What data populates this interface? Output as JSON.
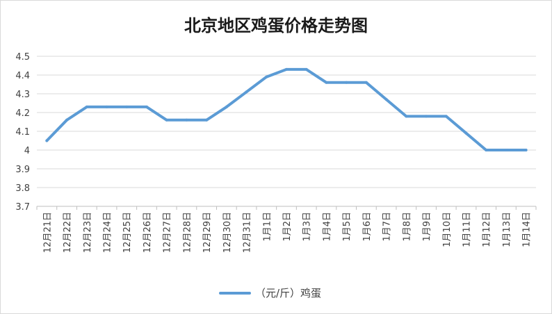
{
  "chart_data": {
    "type": "line",
    "title": "北京地区鸡蛋价格走势图",
    "xlabel": "",
    "ylabel": "",
    "categories": [
      "12月21日",
      "12月22日",
      "12月23日",
      "12月24日",
      "12月25日",
      "12月26日",
      "12月27日",
      "12月28日",
      "12月29日",
      "12月30日",
      "12月31日",
      "1月1日",
      "1月2日",
      "1月3日",
      "1月4日",
      "1月5日",
      "1月6日",
      "1月7日",
      "1月8日",
      "1月9日",
      "1月10日",
      "1月11日",
      "1月12日",
      "1月13日",
      "1月14日"
    ],
    "series": [
      {
        "name": "（元/斤）鸡蛋",
        "color": "#5b9bd5",
        "values": [
          4.05,
          4.16,
          4.23,
          4.23,
          4.23,
          4.23,
          4.16,
          4.16,
          4.16,
          4.23,
          4.31,
          4.39,
          4.43,
          4.43,
          4.36,
          4.36,
          4.36,
          4.27,
          4.18,
          4.18,
          4.18,
          4.09,
          4.0,
          4.0,
          4.0
        ]
      }
    ],
    "ylim": [
      3.7,
      4.5
    ],
    "yticks": [
      "3.7",
      "3.8",
      "3.9",
      "4",
      "4.1",
      "4.2",
      "4.3",
      "4.4",
      "4.5"
    ],
    "grid": true,
    "legend": "bottom-center"
  }
}
